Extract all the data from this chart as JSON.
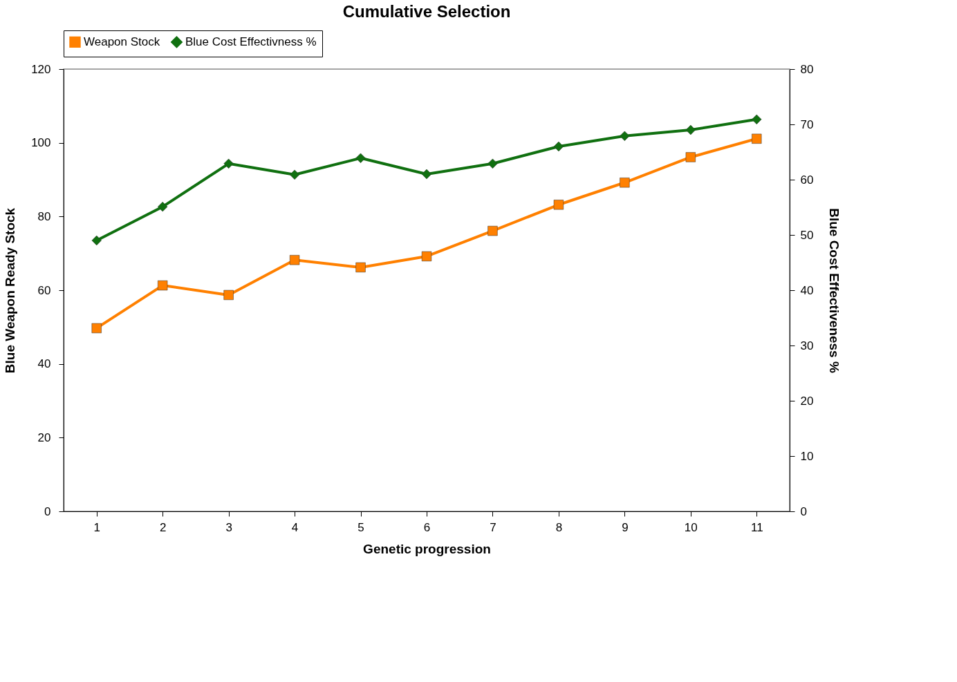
{
  "chart_data": {
    "type": "line",
    "title": "Cumulative Selection",
    "xlabel": "Genetic progression",
    "ylabel": "Blue Weapon Ready Stock",
    "y2label": "Blue Cost Effectiveness %",
    "categories": [
      "1",
      "2",
      "3",
      "4",
      "5",
      "6",
      "7",
      "8",
      "9",
      "10",
      "11"
    ],
    "series": [
      {
        "name": "Weapon Stock",
        "color": "#ff8000",
        "marker": "square",
        "axis": "y",
        "values": [
          49.7,
          61.3,
          58.7,
          68.2,
          66.2,
          69.2,
          76.1,
          83.2,
          89.2,
          96.1,
          101.1
        ]
      },
      {
        "name": "Blue Cost Effectivness %",
        "color": "#107010",
        "marker": "diamond",
        "axis": "y2",
        "values": [
          49,
          55.1,
          62.9,
          60.9,
          63.9,
          61,
          62.9,
          66,
          67.9,
          69,
          70.9
        ]
      }
    ],
    "ylim": [
      0,
      120
    ],
    "yticks": [
      0,
      20,
      40,
      60,
      80,
      100,
      120
    ],
    "y2lim": [
      0,
      80
    ],
    "y2ticks": [
      0,
      10,
      20,
      30,
      40,
      50,
      60,
      70,
      80
    ],
    "grid": false,
    "legend": "top",
    "line_style": "solid"
  }
}
